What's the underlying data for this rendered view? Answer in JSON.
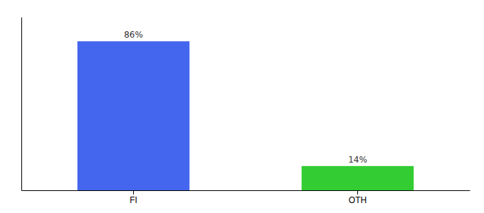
{
  "chart_data": {
    "type": "bar",
    "categories": [
      "FI",
      "OTH"
    ],
    "values": [
      86,
      14
    ],
    "value_labels": [
      "86%",
      "14%"
    ],
    "colors": [
      "#4466ee",
      "#33cc33"
    ],
    "ylim": [
      0,
      100
    ],
    "data_labels": true,
    "tick_labels": "x"
  }
}
